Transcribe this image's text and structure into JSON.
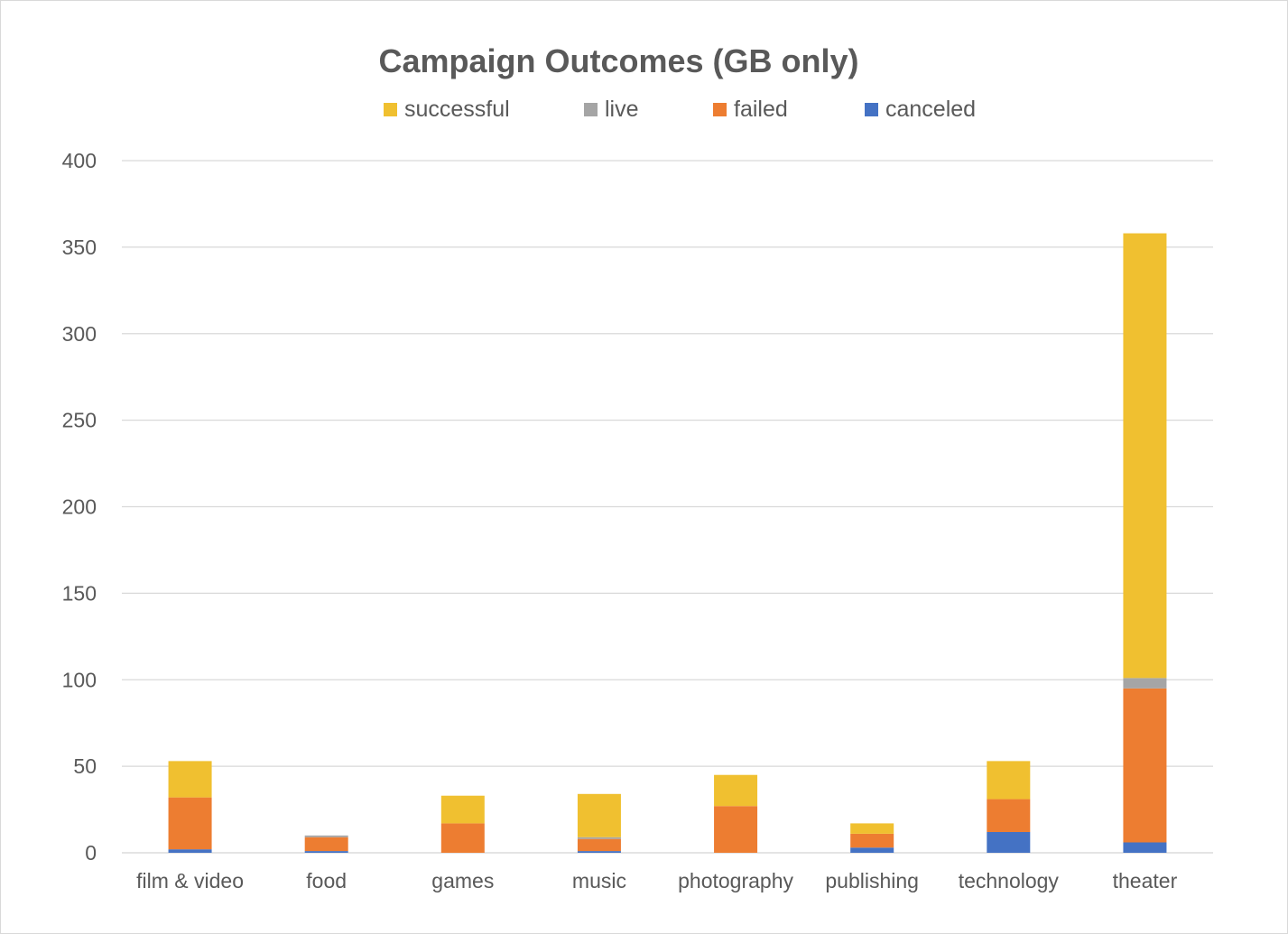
{
  "chart_data": {
    "type": "bar",
    "stacked": true,
    "title": "Campaign Outcomes (GB only)",
    "xlabel": "",
    "ylabel": "",
    "ylim": [
      0,
      400
    ],
    "yticks": [
      0,
      50,
      100,
      150,
      200,
      250,
      300,
      350,
      400
    ],
    "grid": true,
    "legend_position": "top",
    "categories": [
      "film & video",
      "food",
      "games",
      "music",
      "photography",
      "publishing",
      "technology",
      "theater"
    ],
    "series": [
      {
        "name": "canceled",
        "color": "#4472C4",
        "values": [
          2,
          1,
          0,
          1,
          0,
          3,
          12,
          6
        ]
      },
      {
        "name": "failed",
        "color": "#ED7D31",
        "values": [
          30,
          8,
          17,
          7,
          27,
          8,
          19,
          89
        ]
      },
      {
        "name": "live",
        "color": "#A5A5A5",
        "values": [
          0,
          1,
          0,
          1,
          0,
          0,
          0,
          6
        ]
      },
      {
        "name": "successful",
        "color": "#F0C030",
        "values": [
          21,
          0,
          16,
          25,
          18,
          6,
          22,
          257
        ]
      }
    ],
    "legend_order": [
      "successful",
      "live",
      "failed",
      "canceled"
    ]
  }
}
